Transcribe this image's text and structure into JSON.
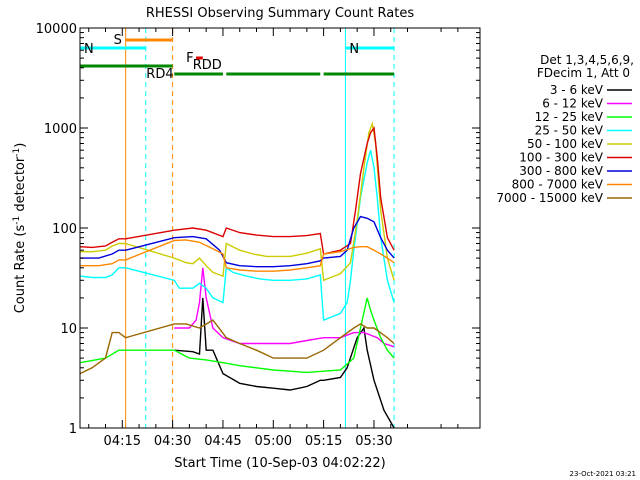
{
  "chart_data": {
    "type": "line",
    "title": "RHESSI Observing Summary Count Rates",
    "xlabel": "Start Time (10-Sep-03 04:02:22)",
    "ylabel_main": "Count Rate (s",
    "ylabel_sup1": "-1",
    "ylabel_mid": " detector",
    "ylabel_sup2": "-1",
    "ylabel_end": ")",
    "yscale": "log",
    "ylim": [
      1,
      10000
    ],
    "xlim_minutes": [
      4.03,
      6.0
    ],
    "x_ticks": [
      {
        "label": "04:15",
        "minute": 255
      },
      {
        "label": "04:30",
        "minute": 270
      },
      {
        "label": "04:45",
        "minute": 285
      },
      {
        "label": "05:00",
        "minute": 300
      },
      {
        "label": "05:15",
        "minute": 315
      },
      {
        "label": "05:30",
        "minute": 330
      }
    ],
    "y_ticks": [
      {
        "label": "1",
        "value": 1
      },
      {
        "label": "10",
        "value": 10
      },
      {
        "label": "100",
        "value": 100
      },
      {
        "label": "1000",
        "value": 1000
      },
      {
        "label": "10000",
        "value": 10000
      }
    ],
    "legend_header": [
      "Det 1,3,4,5,6,9,",
      "FDecim 1, Att 0"
    ],
    "legend_placement": "right",
    "x_range_minutes": [
      242.4,
      361.6
    ],
    "gaps": [
      {
        "name": "night",
        "range_minutes": [
          256,
          270.4
        ]
      },
      {
        "name": "saa",
        "range_minutes": [
          330,
          331.5
        ]
      }
    ],
    "series": [
      {
        "name": "3 - 6 keV",
        "color": "#000000",
        "points": [
          [
            270.5,
            6.0
          ],
          [
            276,
            5.8
          ],
          [
            278,
            5.5
          ],
          [
            279,
            20
          ],
          [
            280,
            6
          ],
          [
            282,
            6
          ],
          [
            285,
            3.5
          ],
          [
            290,
            2.8
          ],
          [
            295,
            2.6
          ],
          [
            300,
            2.5
          ],
          [
            305,
            2.4
          ],
          [
            310,
            2.6
          ],
          [
            314,
            3.0
          ],
          [
            315,
            3.0
          ],
          [
            320,
            3.2
          ],
          [
            322,
            4.0
          ],
          [
            325,
            8.0
          ],
          [
            327,
            10
          ],
          [
            328,
            6.0
          ],
          [
            330,
            3.0
          ],
          [
            333,
            1.5
          ],
          [
            336,
            1.0
          ]
        ]
      },
      {
        "name": "6 - 12 keV",
        "color": "#ff00ff",
        "points": [
          [
            270.5,
            10
          ],
          [
            275,
            10
          ],
          [
            277,
            12
          ],
          [
            278,
            18
          ],
          [
            279,
            40
          ],
          [
            280,
            20
          ],
          [
            282,
            10
          ],
          [
            285,
            8
          ],
          [
            290,
            7
          ],
          [
            295,
            7
          ],
          [
            300,
            7
          ],
          [
            305,
            7
          ],
          [
            310,
            7.5
          ],
          [
            315,
            8
          ],
          [
            320,
            8
          ],
          [
            324,
            9
          ],
          [
            327,
            9
          ],
          [
            329,
            8.5
          ],
          [
            331,
            8
          ],
          [
            333,
            7
          ],
          [
            336,
            6.5
          ]
        ]
      },
      {
        "name": "12 - 25 keV",
        "color": "#00ff00",
        "points": [
          [
            242.4,
            4.5
          ],
          [
            250,
            5
          ],
          [
            254,
            6
          ],
          [
            256,
            6
          ],
          [
            270.5,
            6
          ],
          [
            275,
            5
          ],
          [
            280,
            4.8
          ],
          [
            285,
            4.5
          ],
          [
            290,
            4.2
          ],
          [
            295,
            4
          ],
          [
            300,
            3.8
          ],
          [
            305,
            3.7
          ],
          [
            310,
            3.6
          ],
          [
            315,
            3.7
          ],
          [
            320,
            3.8
          ],
          [
            324,
            5
          ],
          [
            326,
            10
          ],
          [
            328,
            20
          ],
          [
            329,
            15
          ],
          [
            330,
            12
          ],
          [
            332,
            8
          ],
          [
            334,
            6
          ],
          [
            336,
            5
          ]
        ]
      },
      {
        "name": "25 - 50 keV",
        "color": "#00ffff",
        "points": [
          [
            242.4,
            33
          ],
          [
            246,
            32
          ],
          [
            250,
            32
          ],
          [
            252,
            34
          ],
          [
            254,
            40
          ],
          [
            256,
            40
          ],
          [
            270.5,
            30
          ],
          [
            272,
            25
          ],
          [
            276,
            25
          ],
          [
            278,
            28
          ],
          [
            280,
            25
          ],
          [
            282,
            20
          ],
          [
            285,
            18
          ],
          [
            286,
            40
          ],
          [
            288,
            36
          ],
          [
            292,
            33
          ],
          [
            296,
            31
          ],
          [
            300,
            30
          ],
          [
            305,
            30
          ],
          [
            310,
            31
          ],
          [
            314,
            34
          ],
          [
            315,
            12
          ],
          [
            320,
            14
          ],
          [
            322,
            18
          ],
          [
            323,
            30
          ],
          [
            324,
            60
          ],
          [
            326,
            200
          ],
          [
            328,
            450
          ],
          [
            329,
            600
          ],
          [
            330,
            400
          ],
          [
            331,
            200
          ],
          [
            332,
            80
          ],
          [
            334,
            30
          ],
          [
            336,
            18
          ]
        ]
      },
      {
        "name": "50 - 100 keV",
        "color": "#cccc00",
        "points": [
          [
            242.4,
            58
          ],
          [
            246,
            58
          ],
          [
            250,
            60
          ],
          [
            252,
            66
          ],
          [
            254,
            70
          ],
          [
            256,
            70
          ],
          [
            270.5,
            50
          ],
          [
            274,
            45
          ],
          [
            276,
            44
          ],
          [
            278,
            50
          ],
          [
            280,
            42
          ],
          [
            282,
            36
          ],
          [
            285,
            33
          ],
          [
            286,
            70
          ],
          [
            290,
            60
          ],
          [
            294,
            55
          ],
          [
            298,
            52
          ],
          [
            300,
            52
          ],
          [
            305,
            52
          ],
          [
            310,
            56
          ],
          [
            314,
            62
          ],
          [
            315,
            30
          ],
          [
            320,
            35
          ],
          [
            323,
            45
          ],
          [
            325,
            120
          ],
          [
            327,
            400
          ],
          [
            328.5,
            900
          ],
          [
            329.5,
            1100
          ],
          [
            330.5,
            700
          ],
          [
            332,
            150
          ],
          [
            334,
            50
          ],
          [
            336,
            30
          ]
        ]
      },
      {
        "name": "100 - 300 keV",
        "color": "#dd0000",
        "points": [
          [
            242.4,
            65
          ],
          [
            246,
            64
          ],
          [
            250,
            66
          ],
          [
            252,
            72
          ],
          [
            254,
            78
          ],
          [
            256,
            78
          ],
          [
            270.5,
            95
          ],
          [
            276,
            100
          ],
          [
            280,
            95
          ],
          [
            285,
            82
          ],
          [
            286,
            100
          ],
          [
            290,
            90
          ],
          [
            295,
            85
          ],
          [
            300,
            82
          ],
          [
            305,
            82
          ],
          [
            310,
            84
          ],
          [
            314,
            88
          ],
          [
            315,
            55
          ],
          [
            320,
            60
          ],
          [
            323,
            70
          ],
          [
            324.5,
            150
          ],
          [
            326,
            350
          ],
          [
            328,
            700
          ],
          [
            329,
            900
          ],
          [
            330,
            1000
          ],
          [
            331,
            500
          ],
          [
            332,
            200
          ],
          [
            334,
            80
          ],
          [
            336,
            60
          ]
        ]
      },
      {
        "name": "300 - 800 keV",
        "color": "#0000dd",
        "points": [
          [
            242.4,
            50
          ],
          [
            248,
            50
          ],
          [
            252,
            55
          ],
          [
            254,
            60
          ],
          [
            256,
            60
          ],
          [
            270.5,
            80
          ],
          [
            276,
            82
          ],
          [
            280,
            78
          ],
          [
            284,
            60
          ],
          [
            286,
            45
          ],
          [
            290,
            42
          ],
          [
            295,
            41
          ],
          [
            300,
            41
          ],
          [
            305,
            42
          ],
          [
            310,
            44
          ],
          [
            314,
            47
          ],
          [
            315,
            50
          ],
          [
            320,
            52
          ],
          [
            322,
            60
          ],
          [
            324,
            100
          ],
          [
            326,
            130
          ],
          [
            328,
            125
          ],
          [
            330,
            115
          ],
          [
            332,
            80
          ],
          [
            334,
            60
          ],
          [
            336,
            50
          ]
        ]
      },
      {
        "name": "800 - 7000 keV",
        "color": "#ff8800",
        "points": [
          [
            242.4,
            42
          ],
          [
            248,
            42
          ],
          [
            252,
            44
          ],
          [
            254,
            48
          ],
          [
            256,
            48
          ],
          [
            270.5,
            75
          ],
          [
            274,
            76
          ],
          [
            278,
            72
          ],
          [
            282,
            62
          ],
          [
            285,
            55
          ],
          [
            286,
            40
          ],
          [
            290,
            38
          ],
          [
            295,
            37
          ],
          [
            300,
            37
          ],
          [
            305,
            38
          ],
          [
            310,
            40
          ],
          [
            314,
            42
          ],
          [
            315,
            55
          ],
          [
            320,
            58
          ],
          [
            324,
            64
          ],
          [
            326,
            65
          ],
          [
            328,
            65
          ],
          [
            330,
            60
          ],
          [
            332,
            55
          ],
          [
            334,
            50
          ],
          [
            336,
            45
          ]
        ]
      },
      {
        "name": "7000 - 15000 keV",
        "color": "#996600",
        "points": [
          [
            242.4,
            3.5
          ],
          [
            246,
            4
          ],
          [
            250,
            5
          ],
          [
            252,
            9
          ],
          [
            254,
            9
          ],
          [
            256,
            8
          ],
          [
            270.5,
            11
          ],
          [
            274,
            11
          ],
          [
            278,
            10
          ],
          [
            282,
            12
          ],
          [
            286,
            8
          ],
          [
            290,
            7
          ],
          [
            295,
            6
          ],
          [
            300,
            5
          ],
          [
            305,
            5
          ],
          [
            310,
            5
          ],
          [
            315,
            6
          ],
          [
            320,
            8
          ],
          [
            324,
            10
          ],
          [
            326,
            11
          ],
          [
            328,
            10
          ],
          [
            330,
            10
          ],
          [
            334,
            8
          ],
          [
            336,
            7
          ]
        ]
      }
    ],
    "flag_bars": [
      {
        "label": "S",
        "color": "#ff8800",
        "range_minutes": [
          256,
          270
        ]
      },
      {
        "label": "N",
        "color": "#00ffff",
        "range_minutes": [
          242.4,
          262
        ]
      },
      {
        "label": "N",
        "color": "#00ffff",
        "range_minutes": [
          321.5,
          336
        ]
      },
      {
        "label": "RDD",
        "color": "#008800",
        "range_minutes": [
          242.4,
          270
        ]
      },
      {
        "label": "RD4",
        "color": "#008800",
        "range_minutes": [
          270.5,
          285
        ]
      },
      {
        "label": "",
        "color": "#008800",
        "range_minutes": [
          286,
          314
        ]
      },
      {
        "label": "",
        "color": "#008800",
        "range_minutes": [
          315,
          336
        ]
      },
      {
        "label": "F",
        "color": "#dd0000",
        "range_minutes": [
          277,
          279
        ]
      }
    ],
    "vertical_markers": [
      {
        "minute": 242.4,
        "color": "#00ffff",
        "style": "solid"
      },
      {
        "minute": 256,
        "color": "#ff8800",
        "style": "solid"
      },
      {
        "minute": 262,
        "color": "#00ffff",
        "style": "dashed"
      },
      {
        "minute": 270,
        "color": "#ff8800",
        "style": "dashed"
      },
      {
        "minute": 321.5,
        "color": "#00ffff",
        "style": "solid"
      },
      {
        "minute": 336,
        "color": "#00ffff",
        "style": "dashed"
      }
    ]
  },
  "footer_timestamp": "23-Oct-2021 03:21"
}
